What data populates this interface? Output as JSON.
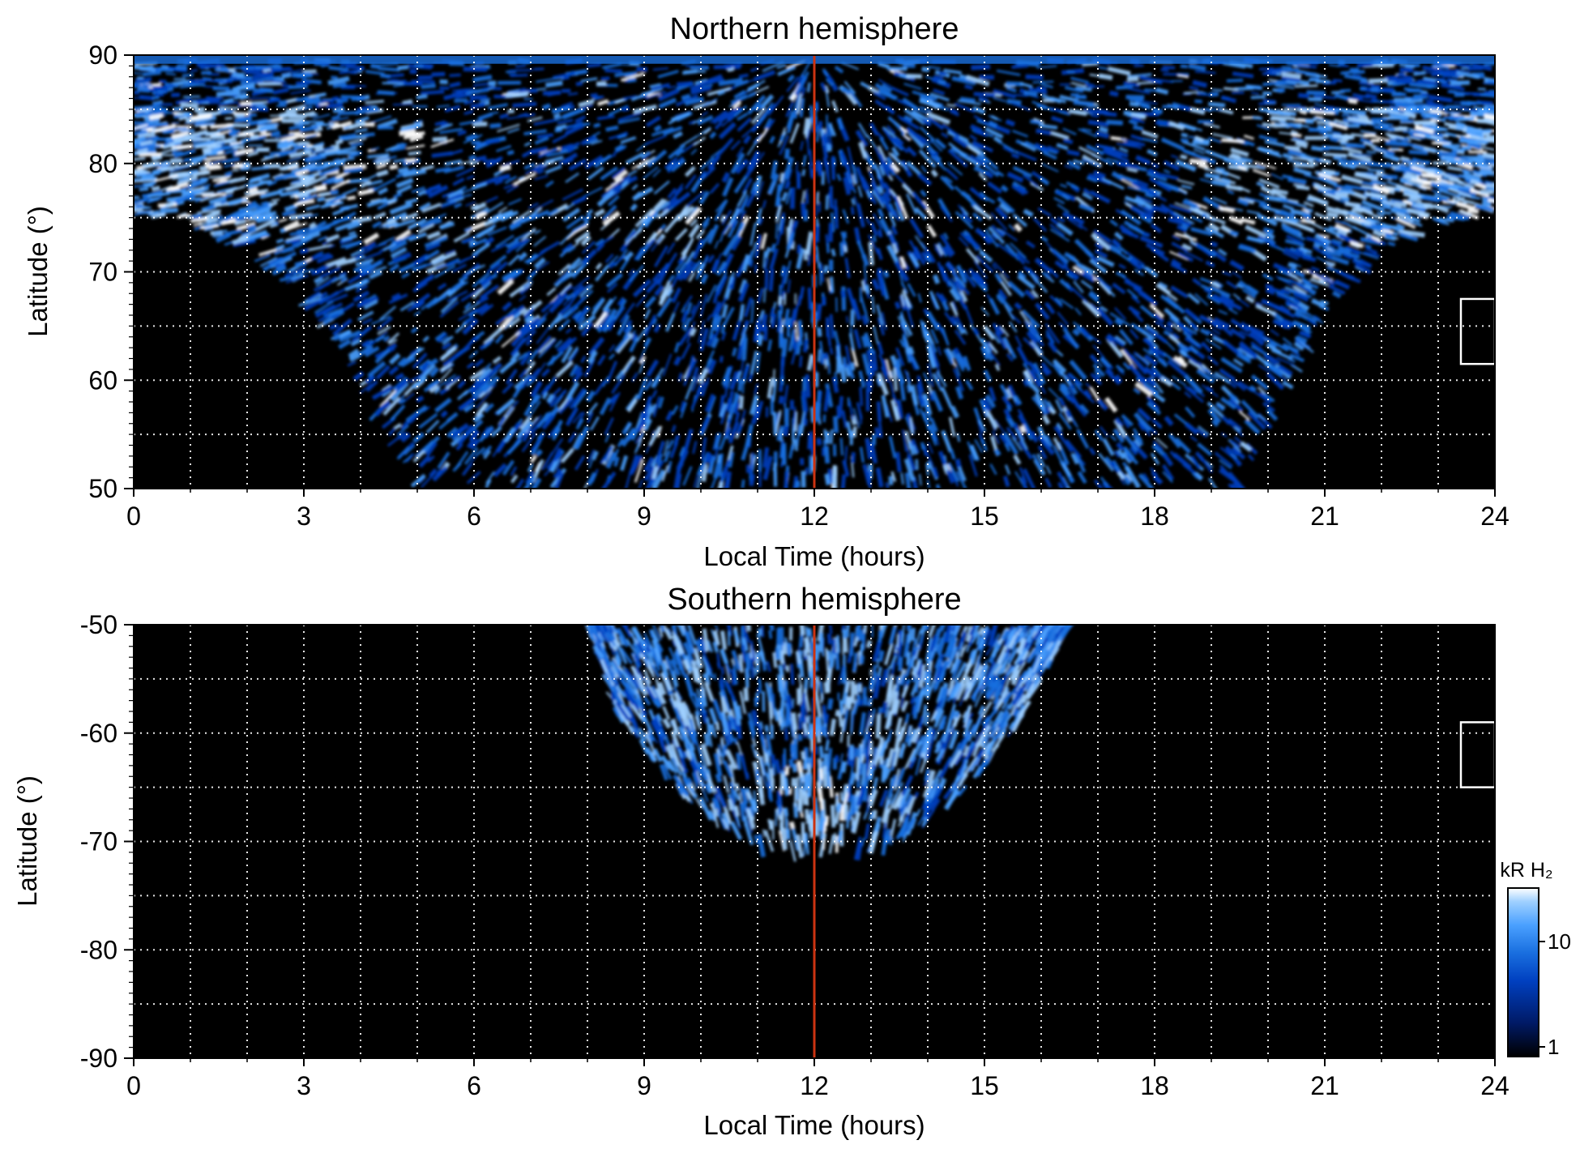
{
  "chart_data": [
    {
      "type": "heatmap",
      "title": "Northern hemisphere",
      "xlabel": "Local Time (hours)",
      "ylabel": "Latitude (°)",
      "xlim": [
        0,
        24
      ],
      "ylim": [
        50,
        90
      ],
      "x_ticks": [
        "0",
        "3",
        "6",
        "9",
        "12",
        "15",
        "18",
        "21",
        "24"
      ],
      "y_ticks": [
        "50",
        "60",
        "70",
        "80",
        "90"
      ],
      "grid": true,
      "noon_line_x": 12,
      "coverage_boundary": [
        [
          0,
          75.5
        ],
        [
          1,
          74.5
        ],
        [
          2,
          72
        ],
        [
          3,
          68
        ],
        [
          4,
          60
        ],
        [
          4.5,
          55
        ],
        [
          5,
          50
        ],
        [
          19.5,
          50
        ],
        [
          20,
          56
        ],
        [
          21,
          66
        ],
        [
          22,
          72
        ],
        [
          23,
          74.5
        ],
        [
          24,
          75.5
        ]
      ],
      "bright_band": {
        "lat_low": 73,
        "lat_high": 85
      },
      "marker_box": {
        "x": [
          23.4,
          24
        ],
        "y": [
          61.5,
          67.5
        ]
      }
    },
    {
      "type": "heatmap",
      "title": "Southern hemisphere",
      "xlabel": "Local Time (hours)",
      "ylabel": "Latitude (°)",
      "xlim": [
        0,
        24
      ],
      "ylim": [
        -90,
        -50
      ],
      "x_ticks": [
        "0",
        "3",
        "6",
        "9",
        "12",
        "15",
        "18",
        "21",
        "24"
      ],
      "y_ticks": [
        "-50",
        "-60",
        "-70",
        "-80",
        "-90"
      ],
      "grid": true,
      "noon_line_x": 12,
      "coverage_boundary": [
        [
          8,
          -50
        ],
        [
          8.5,
          -58
        ],
        [
          9.5,
          -65
        ],
        [
          10.5,
          -69
        ],
        [
          11.5,
          -71.5
        ],
        [
          12,
          -70
        ],
        [
          12.5,
          -71.5
        ],
        [
          13.5,
          -70
        ],
        [
          14.5,
          -66
        ],
        [
          15.5,
          -60
        ],
        [
          16.5,
          -50
        ]
      ],
      "marker_box": {
        "x": [
          23.4,
          24
        ],
        "y": [
          -65,
          -59
        ]
      }
    }
  ],
  "colorbar": {
    "label": "kR H₂",
    "ticks": [
      "1",
      "10"
    ],
    "scale": "log",
    "colors": [
      "#000000",
      "#001a66",
      "#0040c0",
      "#1a70e0",
      "#4aa0ff",
      "#9fd0ff",
      "#ffffff"
    ]
  },
  "colors": {
    "plot_background": "#000000",
    "noon_line": "#cc3311",
    "grid": "#ffffff"
  }
}
